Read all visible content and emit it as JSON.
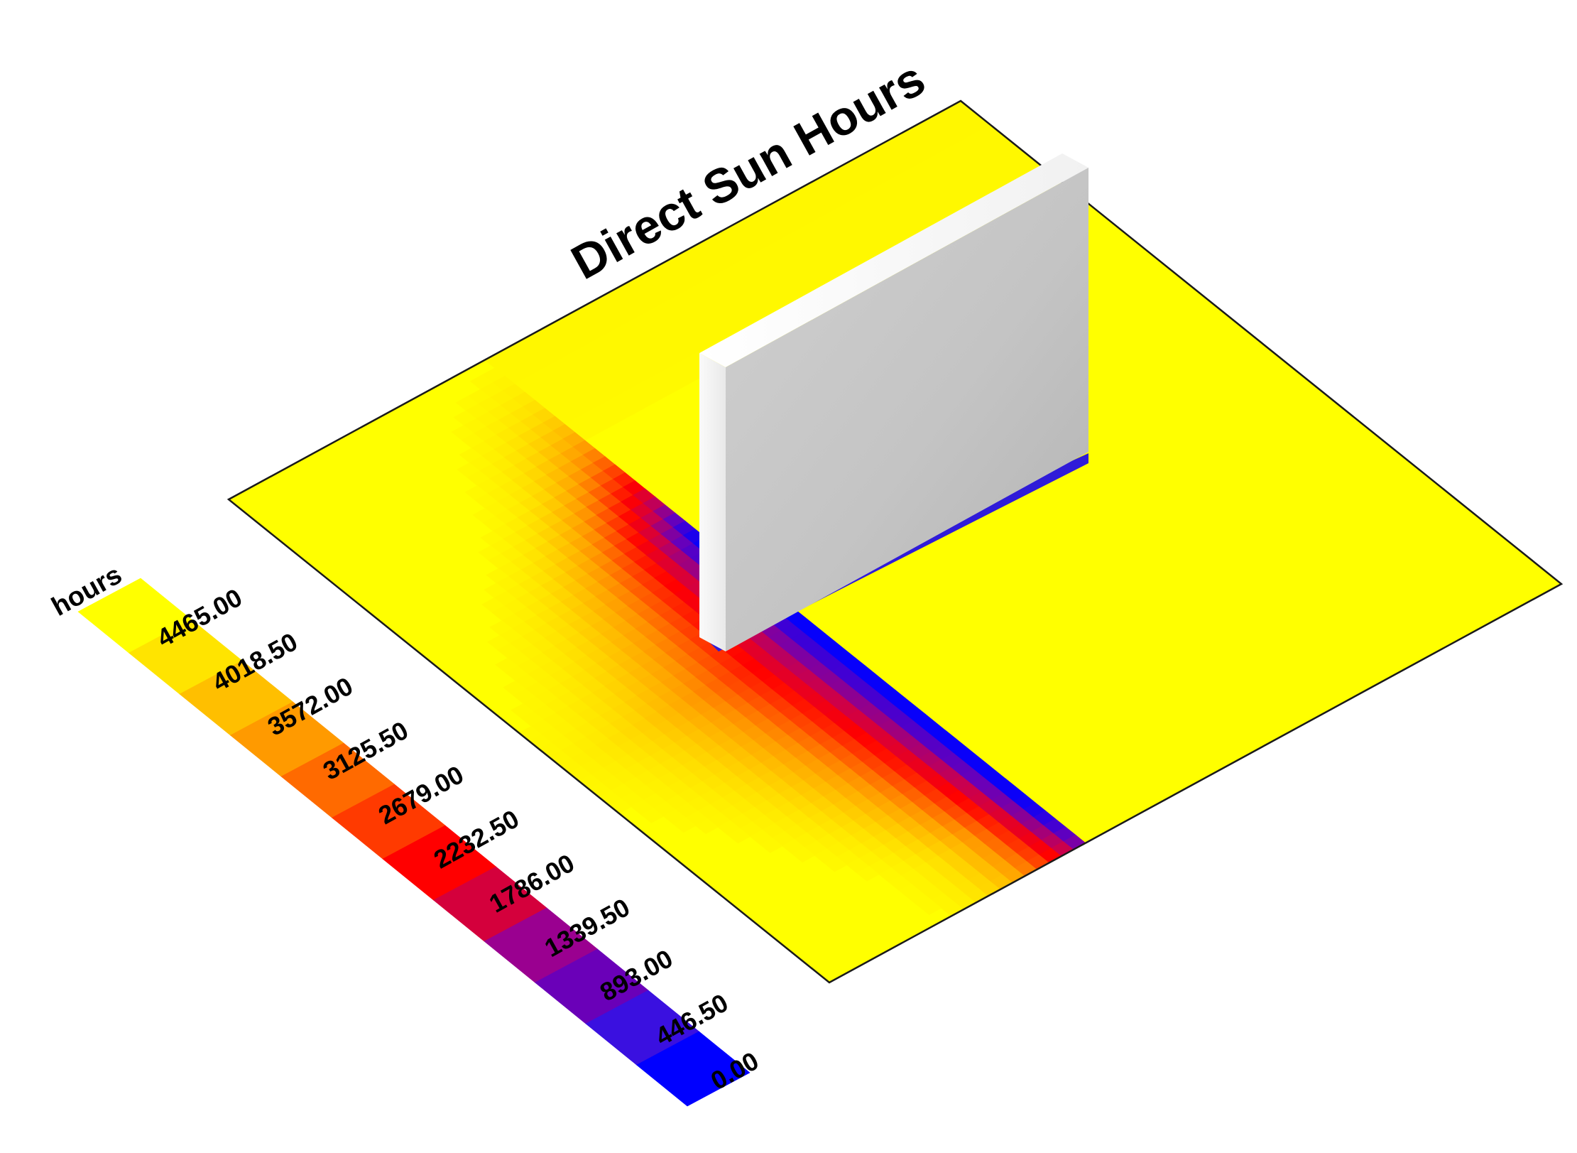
{
  "title": "Direct Sun Hours",
  "legend": {
    "unit": "hours",
    "labels": [
      "4465.00",
      "4018.50",
      "3572.00",
      "3125.50",
      "2679.00",
      "2232.50",
      "1786.00",
      "1339.50",
      "893.00",
      "446.50",
      "0.00"
    ],
    "colors": [
      "#ffff00",
      "#ffe400",
      "#ffbf00",
      "#ff9a00",
      "#ff6a00",
      "#ff3a00",
      "#ff0000",
      "#d4003c",
      "#9a0090",
      "#6a00b8",
      "#3a10e0",
      "#0000ff"
    ]
  }
}
